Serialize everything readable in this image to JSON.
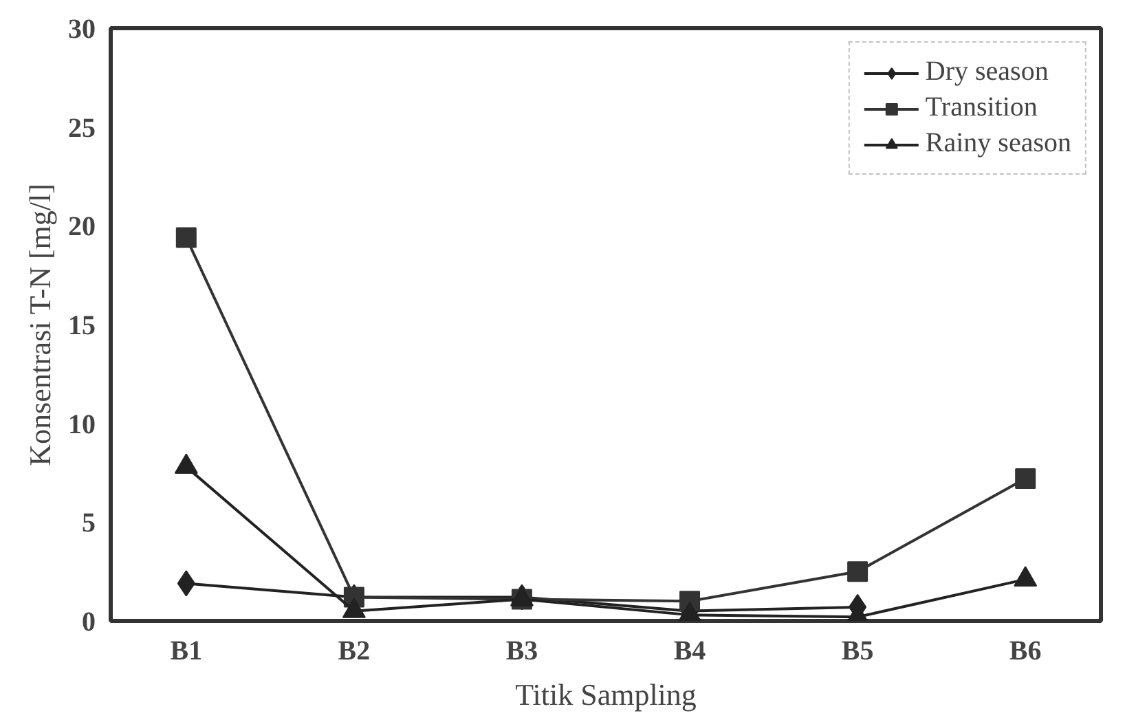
{
  "chart_data": {
    "type": "line",
    "xlabel": "Titik Sampling",
    "ylabel": "Konsentrasi T-N [mg/l]",
    "categories": [
      "B1",
      "B2",
      "B3",
      "B4",
      "B5",
      "B6"
    ],
    "series": [
      {
        "name": "Dry season",
        "color": "#222222",
        "marker": "diamond",
        "values": [
          1.9,
          1.2,
          1.2,
          0.5,
          0.7,
          null
        ]
      },
      {
        "name": "Transition",
        "color": "#333333",
        "marker": "square",
        "values": [
          19.4,
          1.2,
          1.1,
          1.0,
          2.5,
          7.2
        ]
      },
      {
        "name": "Rainy season",
        "color": "#222222",
        "marker": "triangle",
        "values": [
          7.8,
          0.5,
          1.1,
          0.3,
          0.2,
          2.1
        ]
      }
    ],
    "ylim": [
      0,
      30
    ],
    "yticks": [
      0,
      5,
      10,
      15,
      20,
      25,
      30
    ],
    "grid": false,
    "legend": "top right",
    "line_style": "solid"
  }
}
